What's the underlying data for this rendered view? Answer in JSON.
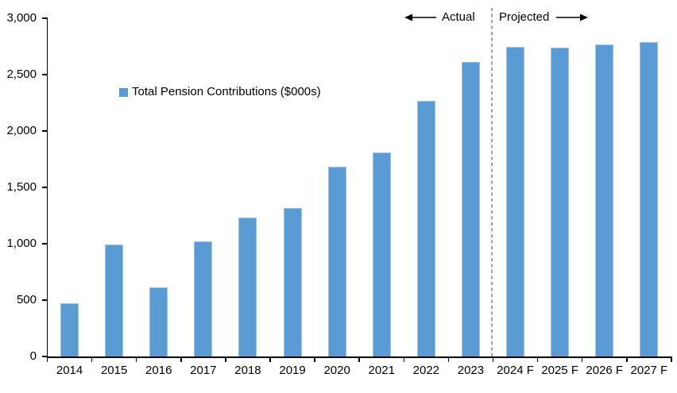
{
  "chart_data": {
    "type": "bar",
    "title": "",
    "xlabel": "",
    "ylabel": "",
    "legend_label": "Total Pension Contributions ($000s)",
    "legend_position": "inside-upper-left",
    "grid": false,
    "categories": [
      "2014",
      "2015",
      "2016",
      "2017",
      "2018",
      "2019",
      "2020",
      "2021",
      "2022",
      "2023",
      "2024 F",
      "2025 F",
      "2026 F",
      "2027 F"
    ],
    "values": [
      470,
      990,
      610,
      1020,
      1230,
      1320,
      1680,
      1810,
      2270,
      2610,
      2750,
      2740,
      2770,
      2790
    ],
    "ylim": [
      0,
      3000
    ],
    "ytick_step": 500,
    "ytick_labels": [
      "0",
      "500",
      "1,000",
      "1,500",
      "2,000",
      "2,500",
      "3,000"
    ],
    "divider_after_category": "2023",
    "divider_after_index": 9,
    "annotations": {
      "actual_label": "Actual",
      "projected_label": "Projected"
    },
    "colors": {
      "bar_fill": "#5B9BD5",
      "bar_border": "#9DC3E6",
      "axis": "#000000",
      "divider": "#A0A0A0",
      "text": "#000000"
    }
  }
}
